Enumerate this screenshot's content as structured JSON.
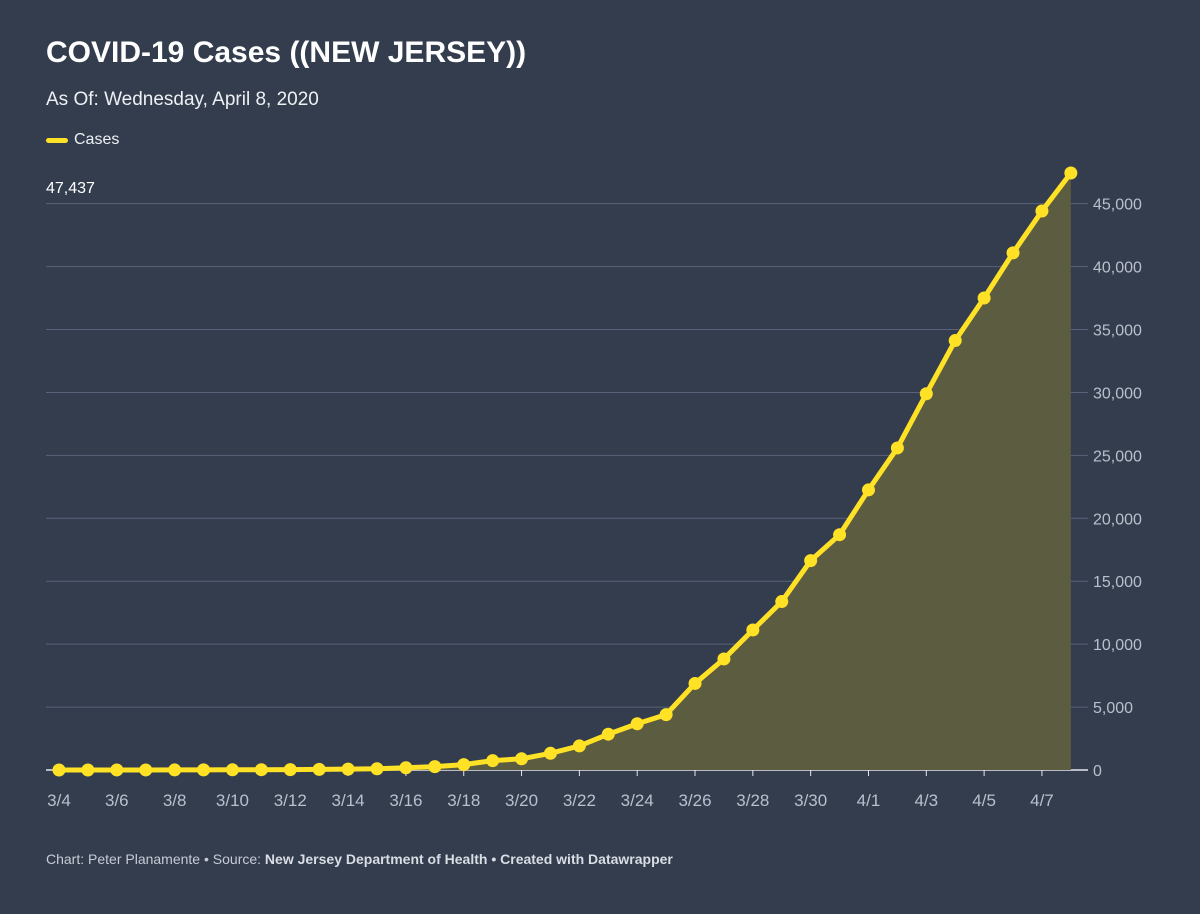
{
  "title": "COVID-19 Cases ((NEW JERSEY))",
  "subtitle": "As Of: Wednesday, April 8, 2020",
  "legend_label": "Cases",
  "colors": {
    "background": "#333d4d",
    "line": "#ffe226",
    "area": "#5c5c41",
    "grid": "#58627a",
    "tick_text": "#b9c0cc"
  },
  "footer": {
    "chart_prefix": "Chart: Peter Planamente",
    "separator": " • ",
    "source_prefix": "Source: ",
    "source_name": "New Jersey Department of Health",
    "created_with": "Created with Datawrapper"
  },
  "chart_data": {
    "type": "area",
    "title": "COVID-19 Cases ((NEW JERSEY))",
    "subtitle": "As Of: Wednesday, April 8, 2020",
    "xlabel": "",
    "ylabel": "",
    "ylim": [
      0,
      47437
    ],
    "grid": true,
    "legend_position": "top-left",
    "y_ticks": [
      0,
      5000,
      10000,
      15000,
      20000,
      25000,
      30000,
      35000,
      40000,
      45000
    ],
    "y_tick_labels": [
      "0",
      "5,000",
      "10,000",
      "15,000",
      "20,000",
      "25,000",
      "30,000",
      "35,000",
      "40,000",
      "45,000"
    ],
    "x_tick_labels": [
      "3/4",
      "3/6",
      "3/8",
      "3/10",
      "3/12",
      "3/14",
      "3/16",
      "3/18",
      "3/20",
      "3/22",
      "3/24",
      "3/26",
      "3/28",
      "3/30",
      "4/1",
      "4/3",
      "4/5",
      "4/7"
    ],
    "last_value_label": "47,437",
    "x": [
      "3/4",
      "3/5",
      "3/6",
      "3/7",
      "3/8",
      "3/9",
      "3/10",
      "3/11",
      "3/12",
      "3/13",
      "3/14",
      "3/15",
      "3/16",
      "3/17",
      "3/18",
      "3/19",
      "3/20",
      "3/21",
      "3/22",
      "3/23",
      "3/24",
      "3/25",
      "3/26",
      "3/27",
      "3/28",
      "3/29",
      "3/30",
      "3/31",
      "4/1",
      "4/2",
      "4/3",
      "4/4",
      "4/5",
      "4/6",
      "4/7",
      "4/8"
    ],
    "series": [
      {
        "name": "Cases",
        "values": [
          1,
          2,
          4,
          4,
          6,
          11,
          15,
          23,
          29,
          50,
          69,
          98,
          178,
          267,
          427,
          742,
          890,
          1327,
          1914,
          2844,
          3675,
          4402,
          6876,
          8825,
          11124,
          13386,
          16636,
          18696,
          22255,
          25590,
          29895,
          34124,
          37505,
          41090,
          44416,
          47437
        ]
      }
    ]
  }
}
